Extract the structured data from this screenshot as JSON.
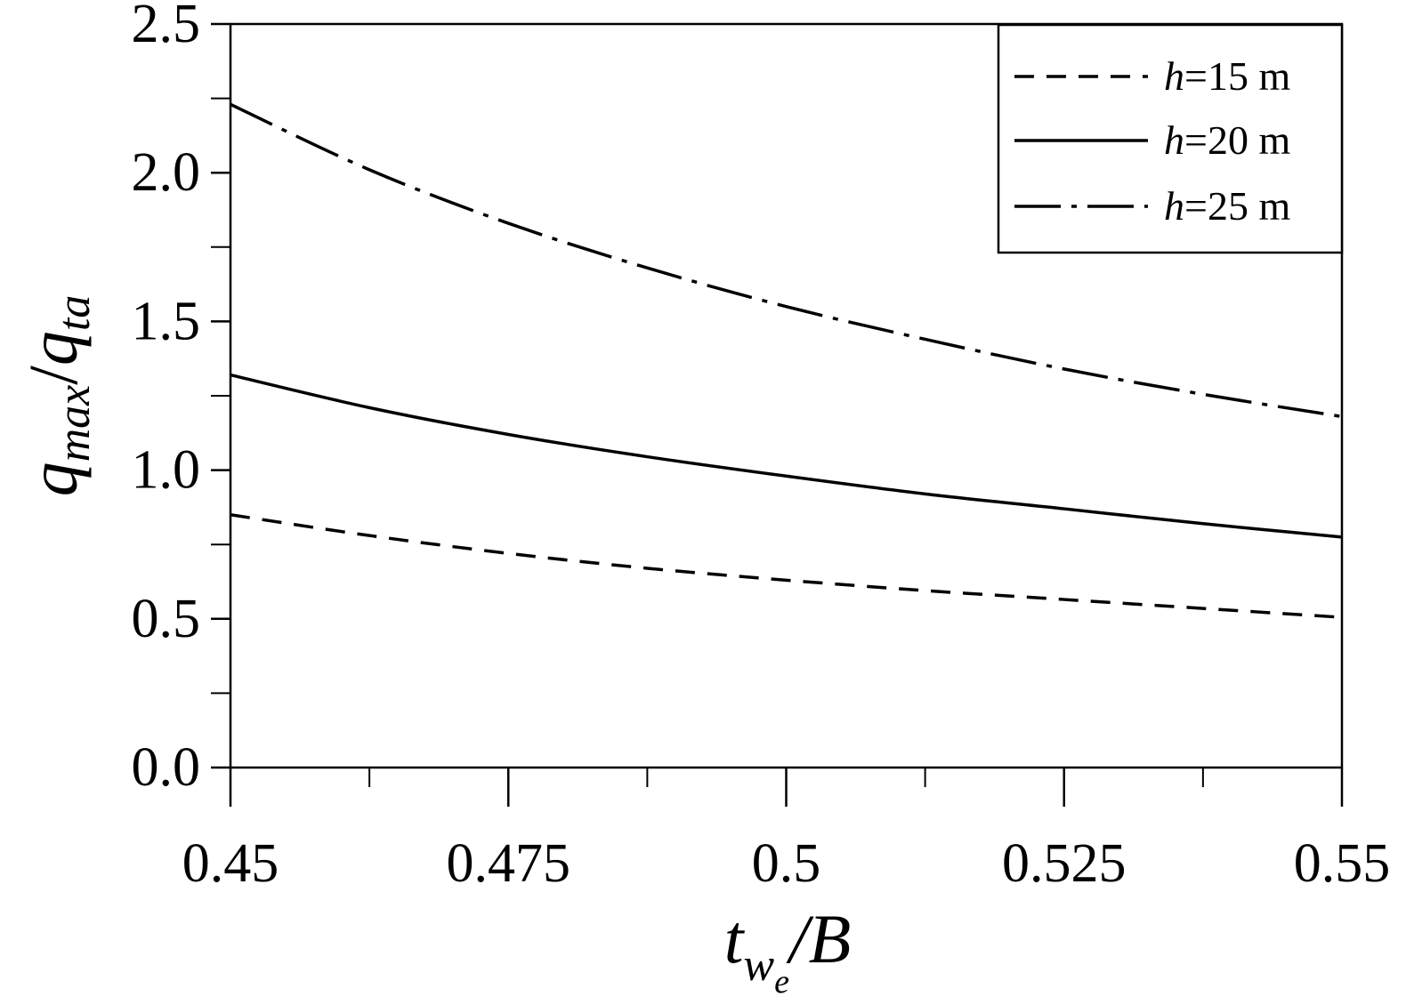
{
  "chart_data": {
    "type": "line",
    "xlabel": {
      "main": "t",
      "sub": "w",
      "subsub": "e",
      "suffix": "/B"
    },
    "ylabel": {
      "num": "q",
      "num_sub": "max",
      "slash": "/",
      "den": "q",
      "den_sub": "ta"
    },
    "xlim": [
      0.45,
      0.55
    ],
    "ylim": [
      0,
      2.5
    ],
    "x_ticks": [
      {
        "value": 0.45,
        "label": "0.45"
      },
      {
        "value": 0.475,
        "label": "0.475"
      },
      {
        "value": 0.5,
        "label": "0.5"
      },
      {
        "value": 0.525,
        "label": "0.525"
      },
      {
        "value": 0.55,
        "label": "0.55"
      }
    ],
    "x_minor_ticks": [
      0.4625,
      0.4875,
      0.5125,
      0.5375
    ],
    "y_ticks": [
      {
        "value": 0.0,
        "label": "0.0"
      },
      {
        "value": 0.5,
        "label": "0.5"
      },
      {
        "value": 1.0,
        "label": "1.0"
      },
      {
        "value": 1.5,
        "label": "1.5"
      },
      {
        "value": 2.0,
        "label": "2.0"
      },
      {
        "value": 2.5,
        "label": "2.5"
      }
    ],
    "y_minor_ticks": [
      0.25,
      0.75,
      1.25,
      1.75,
      2.25
    ],
    "grid": false,
    "legend_position": "top-right",
    "series": [
      {
        "name": "h=15 m",
        "name_italic": "h",
        "name_rest": "=15 m",
        "style": "dashed",
        "x": [
          0.45,
          0.4625,
          0.475,
          0.4875,
          0.5,
          0.5125,
          0.525,
          0.5375,
          0.55
        ],
        "y": [
          0.85,
          0.78,
          0.72,
          0.67,
          0.63,
          0.595,
          0.565,
          0.535,
          0.505
        ]
      },
      {
        "name": "h=20 m",
        "name_italic": "h",
        "name_rest": "=20 m",
        "style": "solid",
        "x": [
          0.45,
          0.4625,
          0.475,
          0.4875,
          0.5,
          0.5125,
          0.525,
          0.5375,
          0.55
        ],
        "y": [
          1.32,
          1.21,
          1.12,
          1.045,
          0.98,
          0.92,
          0.87,
          0.82,
          0.775
        ]
      },
      {
        "name": "h=25 m",
        "name_italic": "h",
        "name_rest": "=25 m",
        "style": "dashdot",
        "x": [
          0.45,
          0.4625,
          0.475,
          0.4875,
          0.5,
          0.5125,
          0.525,
          0.5375,
          0.55
        ],
        "y": [
          2.23,
          2.01,
          1.83,
          1.68,
          1.55,
          1.44,
          1.34,
          1.255,
          1.18
        ]
      }
    ]
  }
}
